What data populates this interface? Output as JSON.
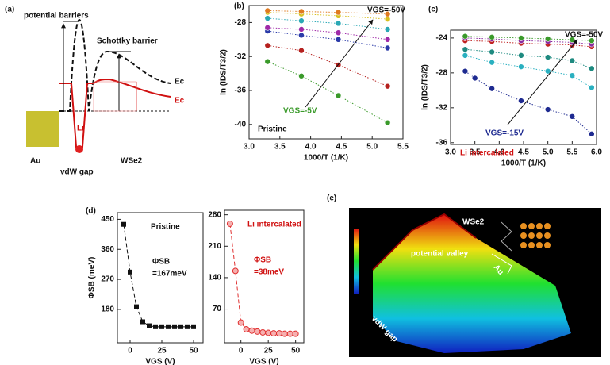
{
  "panel_a": {
    "label": "(a)",
    "potential_barriers": "potential barriers",
    "schottky_barrier": "Schottky barrier",
    "ec_black": "Ec",
    "ec_red": "Ec",
    "li": "Li",
    "au": "Au",
    "vdw_gap": "vdW gap",
    "wse2": "WSe2"
  },
  "panel_e": {
    "label": "(e)",
    "wse2": "WSe2",
    "potential_valley": "potential valley",
    "au": "Au",
    "vdw_gap": "vdW gap"
  },
  "chart_data": [
    {
      "type": "scatter",
      "panel_label": "(b)",
      "x_label": "1000/T (1/K)",
      "y_label": "ln (IDS/T3/2)",
      "xlim": [
        3.0,
        5.5
      ],
      "ylim": [
        -41.7,
        -26
      ],
      "xticks": [
        {
          "value": 3,
          "label": "3.0"
        },
        3.5,
        {
          "value": 4,
          "label": "4.0"
        },
        4.5,
        {
          "value": 5,
          "label": "5.0"
        },
        5.5
      ],
      "yticks": [
        -28,
        -32,
        -36,
        -40
      ],
      "marker": "circle",
      "line_style": "dotted",
      "annotations": [
        "VGS=-50V",
        "VGS=-5V",
        "Pristine"
      ],
      "series": [
        {
          "color": "#3a9a2a",
          "x": [
            3.3,
            3.85,
            4.45,
            5.25
          ],
          "values": [
            -32.6,
            -34.3,
            -36.6,
            -39.8
          ]
        },
        {
          "color": "#b5201e",
          "x": [
            3.3,
            3.85,
            4.45,
            5.25
          ],
          "values": [
            -30.7,
            -31.3,
            -33.0,
            -35.5
          ]
        },
        {
          "color": "#2a3aa8",
          "x": [
            3.3,
            3.85,
            4.45,
            5.25
          ],
          "values": [
            -29.0,
            -29.5,
            -30.0,
            -31.0
          ]
        },
        {
          "color": "#a02aa8",
          "x": [
            3.3,
            3.85,
            4.45,
            5.25
          ],
          "values": [
            -28.6,
            -28.8,
            -29.2,
            -30.0
          ]
        },
        {
          "color": "#2aa8b5",
          "x": [
            3.3,
            3.85,
            4.45,
            5.25
          ],
          "values": [
            -27.5,
            -27.8,
            -28.1,
            -28.8
          ]
        },
        {
          "color": "#d8c020",
          "x": [
            3.3,
            3.85,
            4.45,
            5.25
          ],
          "values": [
            -26.8,
            -27.0,
            -27.2,
            -27.6
          ]
        },
        {
          "color": "#e07a20",
          "x": [
            3.3,
            3.85,
            4.45,
            5.25
          ],
          "values": [
            -26.6,
            -26.7,
            -26.8,
            -27.0
          ]
        }
      ]
    },
    {
      "type": "scatter",
      "panel_label": "(c)",
      "x_label": "1000/T (1/K)",
      "y_label": "ln (IDS/T3/2)",
      "xlim": [
        3.0,
        6.0
      ],
      "ylim": [
        -36.2,
        -23.1
      ],
      "xticks": [
        {
          "value": 3,
          "label": "3.0"
        },
        3.5,
        {
          "value": 4,
          "label": "4.0"
        },
        4.5,
        {
          "value": 5,
          "label": "5.0"
        },
        5.5,
        {
          "value": 6,
          "label": "6.0"
        }
      ],
      "yticks": [
        -24,
        -28,
        -32,
        -36
      ],
      "marker": "circle",
      "line_style": "dotted",
      "annotations": [
        "VGS=-50V",
        "VGS=-15V",
        "Li intercalated"
      ],
      "series": [
        {
          "color": "#1e2a90",
          "x": [
            3.3,
            3.5,
            3.85,
            4.45,
            5.0,
            5.5,
            5.9
          ],
          "values": [
            -27.8,
            -28.6,
            -29.8,
            -31.2,
            -32.2,
            -33.0,
            -35.0
          ]
        },
        {
          "color": "#2ab0c0",
          "x": [
            3.3,
            3.85,
            4.45,
            5.0,
            5.5,
            5.9
          ],
          "values": [
            -26.0,
            -26.8,
            -27.3,
            -27.8,
            -28.3,
            -29.7
          ]
        },
        {
          "color": "#1e8a80",
          "x": [
            3.3,
            3.85,
            4.45,
            5.0,
            5.5,
            5.9
          ],
          "values": [
            -25.3,
            -25.6,
            -26.0,
            -26.2,
            -26.6,
            -27.5
          ]
        },
        {
          "color": "#c02020",
          "x": [
            3.3,
            3.85,
            4.45,
            5.0,
            5.5,
            5.9
          ],
          "values": [
            -24.3,
            -24.4,
            -24.6,
            -24.7,
            -24.8,
            -25.0
          ]
        },
        {
          "color": "#8a2aa0",
          "x": [
            3.3,
            3.85,
            4.45,
            5.0,
            5.5,
            5.9
          ],
          "values": [
            -24.0,
            -24.1,
            -24.3,
            -24.4,
            -24.5,
            -24.7
          ]
        },
        {
          "color": "#3a9a2a",
          "x": [
            3.3,
            3.85,
            4.45,
            5.0,
            5.5,
            5.9
          ],
          "values": [
            -23.8,
            -23.9,
            -24.0,
            -24.1,
            -24.2,
            -24.3
          ]
        }
      ]
    },
    {
      "type": "scatter",
      "panel_label": "(d)",
      "x_label": "VGS (V)",
      "y_label": "ΦSB (meV)",
      "xlim": [
        -10,
        57.5
      ],
      "ylim": [
        80,
        470
      ],
      "xticks": [
        0,
        25,
        50
      ],
      "yticks": [
        180,
        270,
        360,
        450
      ],
      "marker": "square",
      "line_style": "dashed",
      "annotations": [
        "Pristine",
        "ΦSB",
        "=167meV"
      ],
      "series": [
        {
          "color": "#111111",
          "x": [
            -5,
            0,
            5,
            10,
            15,
            20,
            25,
            30,
            35,
            40,
            45,
            50
          ],
          "values": [
            435,
            292,
            188,
            143,
            131,
            128,
            128,
            128,
            128,
            128,
            128,
            128
          ]
        }
      ]
    },
    {
      "type": "scatter",
      "x_label": "VGS (V)",
      "xlim": [
        -15,
        57.5
      ],
      "ylim": [
        -5,
        290
      ],
      "xticks": [
        0,
        25,
        50
      ],
      "yticks": [
        70,
        140,
        210,
        280
      ],
      "marker": "circle",
      "line_style": "dashed",
      "annotations": [
        "Li intercalated",
        "ΦSB",
        "=38meV"
      ],
      "series": [
        {
          "color": "#e03030",
          "x": [
            -10,
            -5,
            0,
            5,
            10,
            15,
            20,
            25,
            30,
            35,
            40,
            45,
            50
          ],
          "values": [
            260,
            155,
            40,
            25,
            22,
            20,
            18,
            17,
            16,
            16,
            15,
            15,
            15
          ]
        }
      ]
    }
  ]
}
